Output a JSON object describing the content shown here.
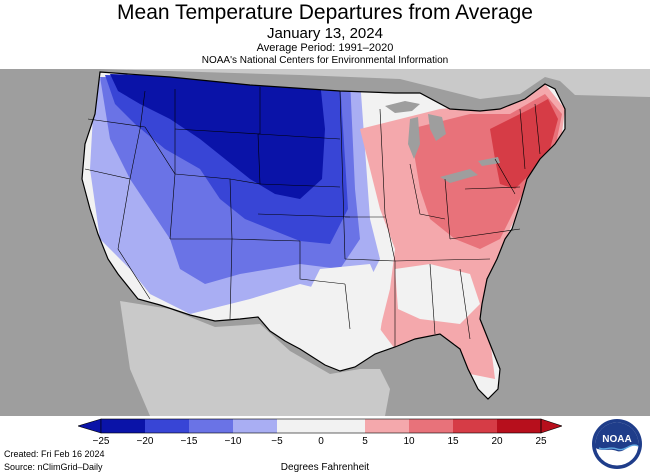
{
  "header": {
    "title": "Mean Temperature Departures from Average",
    "date": "January 13, 2024",
    "period": "Average Period: 1991–2020",
    "organization": "NOAA's National Centers for Environmental Information"
  },
  "legend": {
    "ticks": [
      "−25",
      "−20",
      "−15",
      "−10",
      "−5",
      "0",
      "5",
      "10",
      "15",
      "20",
      "25"
    ],
    "units": "Degrees Fahrenheit",
    "colors": [
      "#0a13a8",
      "#3845d6",
      "#6a73e6",
      "#a9aef3",
      "#f2f2f2",
      "#f2f2f2",
      "#f4a8ac",
      "#e8727a",
      "#d63c46",
      "#b70f1c"
    ]
  },
  "footer": {
    "created": "Created: Fri Feb 16 2024",
    "source": "Source: nClimGrid–Daily"
  },
  "logo": {
    "text": "NOAA",
    "icon": "noaa-logo-icon"
  },
  "map": {
    "region": "Contiguous United States",
    "background": "#9e9e9e",
    "land_neutral": "#f2f2f2"
  }
}
